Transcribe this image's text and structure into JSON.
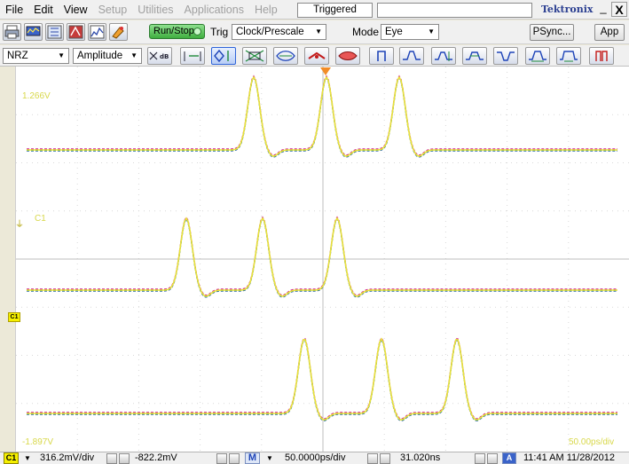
{
  "menubar": {
    "items": [
      {
        "label": "File",
        "enabled": true
      },
      {
        "label": "Edit",
        "enabled": true
      },
      {
        "label": "View",
        "enabled": true
      },
      {
        "label": "Setup",
        "enabled": false
      },
      {
        "label": "Utilities",
        "enabled": false
      },
      {
        "label": "Applications",
        "enabled": false
      },
      {
        "label": "Help",
        "enabled": false
      }
    ],
    "status": "Triggered",
    "brand": "Tektronix",
    "minimize": "_",
    "close": "X"
  },
  "toolbar1": {
    "run_stop_label": "Run/Stop",
    "trig_label": "Trig",
    "trig_source": "Clock/Prescale",
    "mode_label": "Mode",
    "mode_value": "Eye",
    "psync_label": "PSync...",
    "app_label": "App"
  },
  "toolbar2": {
    "coding": "NRZ",
    "measurement": "Amplitude",
    "icons": [
      "db-icon",
      "bandwidth-icon",
      "eye-diagram-icon",
      "eye-cross-icon",
      "eye-width-icon",
      "eye-edge-icon",
      "eye-red-icon",
      "square-pulse-icon",
      "rising-edge-icon",
      "crossing-icon",
      "eye-opening-icon",
      "pulse-icon",
      "falling-edge-icon",
      "jitter-icon",
      "wide-pulse-icon",
      "mask-icon"
    ]
  },
  "scope": {
    "top_level": "1.266V",
    "bottom_level": "-1.897V",
    "time_per_div": "50.00ps/div",
    "channel_label": "C1",
    "channel_marker": "C1",
    "colors": {
      "trace_main": "#e8e23a",
      "trace_alt1": "#d11f8e",
      "trace_alt2": "#2f4ec7",
      "trace_alt3": "#22a35a",
      "grid": "#d9d9d9",
      "labels": "#d8d84a",
      "trigger_marker": "#f28c28"
    }
  },
  "statusbar": {
    "channel": "C1",
    "volts_per_div": "316.2mV/div",
    "offset": "-822.2mV",
    "math_label": "M",
    "time_per_div": "50.0000ps/div",
    "delay": "31.020ns",
    "datetime": "11:41 AM 11/28/2012"
  }
}
